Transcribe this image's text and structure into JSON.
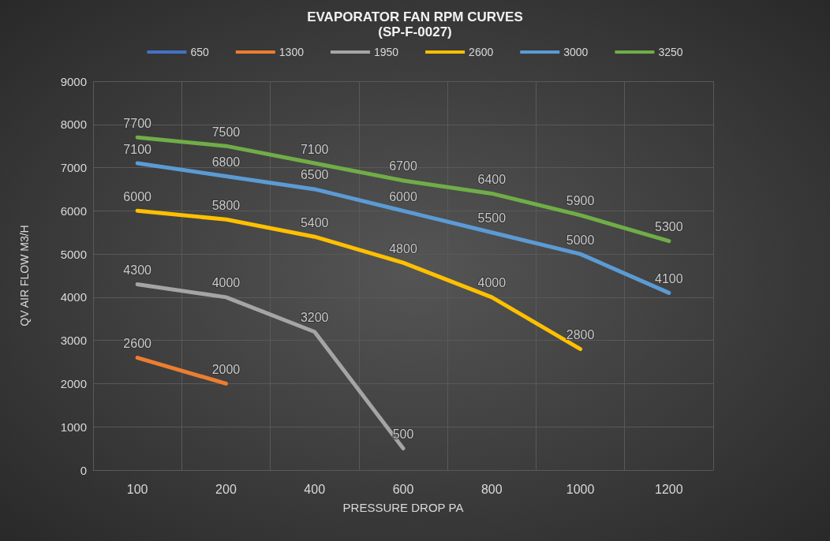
{
  "chart_data": {
    "type": "line",
    "title": "EVAPORATOR FAN RPM CURVES",
    "subtitle": "(SP-F-0027)",
    "xlabel": "PRESSURE DROP PA",
    "ylabel": "QV AIR FLOW M3/H",
    "categories": [
      "100",
      "200",
      "400",
      "600",
      "800",
      "1000",
      "1200"
    ],
    "series": [
      {
        "name": "650",
        "color": "#4472c4",
        "values": [
          null,
          null,
          null,
          null,
          null,
          null,
          null
        ]
      },
      {
        "name": "1300",
        "color": "#ed7d31",
        "values": [
          2600,
          2000,
          null,
          null,
          null,
          null,
          null
        ]
      },
      {
        "name": "1950",
        "color": "#a5a5a5",
        "values": [
          4300,
          4000,
          3200,
          500,
          null,
          null,
          null
        ]
      },
      {
        "name": "2600",
        "color": "#ffc000",
        "values": [
          6000,
          5800,
          5400,
          4800,
          4000,
          2800,
          null
        ]
      },
      {
        "name": "3000",
        "color": "#5b9bd5",
        "values": [
          7100,
          6800,
          6500,
          6000,
          5500,
          5000,
          4100
        ]
      },
      {
        "name": "3250",
        "color": "#70ad47",
        "values": [
          7700,
          7500,
          7100,
          6700,
          6400,
          5900,
          5300
        ]
      }
    ],
    "ylim": [
      0,
      9000
    ],
    "yticks": [
      0,
      1000,
      2000,
      3000,
      4000,
      5000,
      6000,
      7000,
      8000,
      9000
    ],
    "grid": true,
    "legend": "top",
    "marker": "none",
    "line_style": "solid",
    "data_labels": true
  }
}
